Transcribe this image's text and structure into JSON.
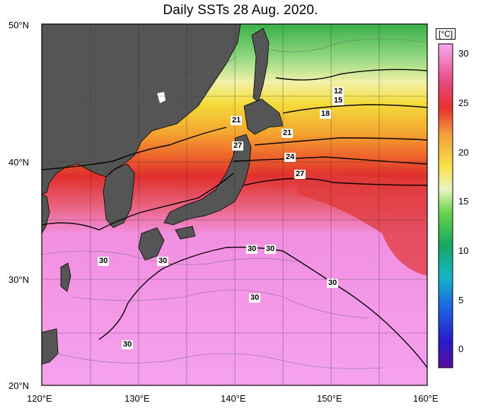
{
  "title": "Daily SSTs 28 Aug. 2020.",
  "axes": {
    "lat_labels": [
      "50°N",
      "40°N",
      "30°N",
      "20°N"
    ],
    "lon_labels": [
      "120°E",
      "130°E",
      "140°E",
      "150°E",
      "160°E"
    ]
  },
  "colorbar": {
    "unit": "[°C]",
    "ticks": [
      "30",
      "25",
      "20",
      "15",
      "10",
      "5",
      "0"
    ]
  },
  "isotherm_labels": [
    "12",
    "15",
    "18",
    "21",
    "24",
    "27",
    "21",
    "24",
    "27",
    "30",
    "30",
    "30",
    "30",
    "30",
    "30",
    "30"
  ],
  "colors": {
    "land": "#555555",
    "warm_sea": "#f08ce6",
    "hot_sea": "#e23a34",
    "yellow_sea": "#f4d640",
    "green_sea": "#54c454"
  }
}
